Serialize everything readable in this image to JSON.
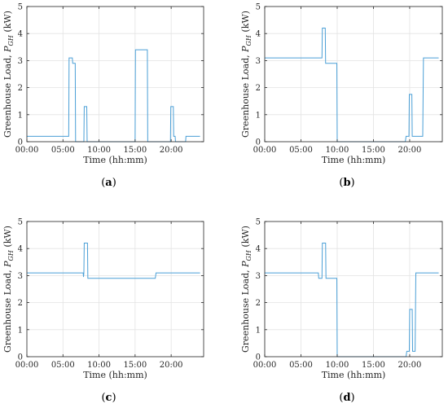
{
  "chart_data": [
    {
      "type": "line",
      "panel_label": "a",
      "xlabel": "Time (hh:mm)",
      "ylabel": "Greenhouse Load, ",
      "ylabel_symbol": "P",
      "ylabel_sub": "GH",
      "ylabel_unit": " (kW)",
      "xlim": [
        0,
        24.5
      ],
      "ylim": [
        0,
        5
      ],
      "xticks": [
        0,
        5,
        10,
        15,
        20
      ],
      "xtick_labels": [
        "00:00",
        "05:00",
        "10:00",
        "15:00",
        "20:00"
      ],
      "yticks": [
        0,
        1,
        2,
        3,
        4,
        5
      ],
      "ytick_labels": [
        "0",
        "1",
        "2",
        "3",
        "4",
        "5"
      ],
      "grid": true,
      "color": "#4a9fd6",
      "x": [
        0,
        5.8,
        5.85,
        6.3,
        6.35,
        6.7,
        6.75,
        7.9,
        7.95,
        8.3,
        8.35,
        15.0,
        15.05,
        16.7,
        16.75,
        19.9,
        19.95,
        20.3,
        20.35,
        20.55,
        20.6,
        22.0,
        22.05,
        24.0
      ],
      "y": [
        0.2,
        0.2,
        3.1,
        3.1,
        2.9,
        2.9,
        0,
        0,
        1.3,
        1.3,
        0,
        0,
        3.4,
        3.4,
        0,
        0,
        1.3,
        1.3,
        0.2,
        0.2,
        0,
        0,
        0.2,
        0.2
      ]
    },
    {
      "type": "line",
      "panel_label": "b",
      "xlabel": "Time (hh:mm)",
      "ylabel": "Greenhouse Load, ",
      "ylabel_symbol": "P",
      "ylabel_sub": "GH",
      "ylabel_unit": " (kW)",
      "xlim": [
        0,
        24.5
      ],
      "ylim": [
        0,
        5
      ],
      "xticks": [
        0,
        5,
        10,
        15,
        20
      ],
      "xtick_labels": [
        "00:00",
        "05:00",
        "10:00",
        "15:00",
        "20:00"
      ],
      "yticks": [
        0,
        1,
        2,
        3,
        4,
        5
      ],
      "ytick_labels": [
        "0",
        "1",
        "2",
        "3",
        "4",
        "5"
      ],
      "grid": true,
      "color": "#4a9fd6",
      "x": [
        0,
        7.9,
        7.95,
        8.35,
        8.4,
        9.95,
        10.0,
        19.4,
        19.5,
        19.9,
        19.95,
        20.3,
        20.35,
        21.8,
        21.9,
        24.0
      ],
      "y": [
        3.1,
        3.1,
        4.2,
        4.2,
        2.9,
        2.9,
        0,
        0,
        0.2,
        0.2,
        1.75,
        1.75,
        0.2,
        0.2,
        3.1,
        3.1
      ]
    },
    {
      "type": "line",
      "panel_label": "c",
      "xlabel": "Time (hh:mm)",
      "ylabel": "Greenhouse Load, ",
      "ylabel_symbol": "P",
      "ylabel_sub": "GH",
      "ylabel_unit": " (kW)",
      "xlim": [
        0,
        24.5
      ],
      "ylim": [
        0,
        5
      ],
      "xticks": [
        0,
        5,
        10,
        15,
        20
      ],
      "xtick_labels": [
        "00:00",
        "05:00",
        "10:00",
        "15:00",
        "20:00"
      ],
      "yticks": [
        0,
        1,
        2,
        3,
        4,
        5
      ],
      "ytick_labels": [
        "0",
        "1",
        "2",
        "3",
        "4",
        "5"
      ],
      "grid": true,
      "color": "#4a9fd6",
      "x": [
        0,
        7.8,
        7.85,
        7.9,
        7.95,
        8.4,
        8.45,
        17.8,
        17.9,
        24.0
      ],
      "y": [
        3.1,
        3.1,
        2.95,
        3.1,
        4.2,
        4.2,
        2.9,
        2.9,
        3.1,
        3.1
      ]
    },
    {
      "type": "line",
      "panel_label": "d",
      "xlabel": "Time (hh:mm)",
      "ylabel": "Greenhouse Load, ",
      "ylabel_symbol": "P",
      "ylabel_sub": "GH",
      "ylabel_unit": " (kW)",
      "xlim": [
        0,
        24.5
      ],
      "ylim": [
        0,
        5
      ],
      "xticks": [
        0,
        5,
        10,
        15,
        20
      ],
      "xtick_labels": [
        "00:00",
        "05:00",
        "10:00",
        "15:00",
        "20:00"
      ],
      "yticks": [
        0,
        1,
        2,
        3,
        4,
        5
      ],
      "ytick_labels": [
        "0",
        "1",
        "2",
        "3",
        "4",
        "5"
      ],
      "grid": true,
      "color": "#4a9fd6",
      "x": [
        0,
        7.4,
        7.45,
        7.9,
        7.95,
        8.4,
        8.45,
        9.95,
        10.0,
        19.5,
        19.6,
        19.95,
        20.0,
        20.35,
        20.4,
        20.75,
        20.85,
        24.0
      ],
      "y": [
        3.1,
        3.1,
        2.9,
        2.9,
        4.2,
        4.2,
        2.9,
        2.9,
        0,
        0,
        0.2,
        0.2,
        1.75,
        1.75,
        0.2,
        0.2,
        3.1,
        3.1
      ]
    }
  ]
}
